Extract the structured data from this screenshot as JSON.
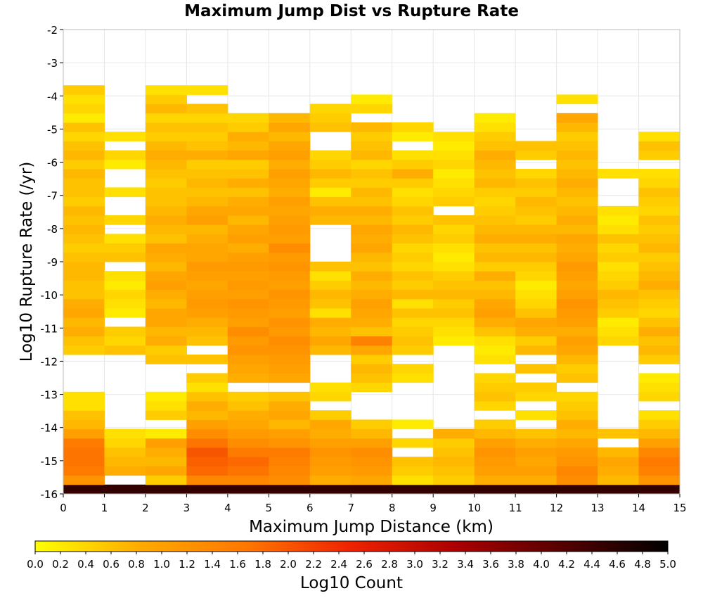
{
  "chart_data": {
    "type": "heatmap",
    "title": "Maximum Jump Dist vs Rupture Rate",
    "xlabel": "Maximum Jump Distance (km)",
    "ylabel": "Log10 Rupture Rate (/yr)",
    "xlim": [
      0,
      15
    ],
    "ylim": [
      -16,
      -2
    ],
    "x_ticks": [
      "0",
      "1",
      "2",
      "3",
      "4",
      "5",
      "6",
      "7",
      "8",
      "9",
      "10",
      "11",
      "12",
      "13",
      "14",
      "15"
    ],
    "y_ticks": [
      "-2",
      "-3",
      "-4",
      "-5",
      "-6",
      "-7",
      "-8",
      "-9",
      "-10",
      "-11",
      "-12",
      "-13",
      "-14",
      "-15",
      "-16"
    ],
    "grid": true,
    "colorbar": {
      "label": "Log10 Count",
      "range": [
        0,
        5
      ],
      "placement": "bottom",
      "ticks": [
        "0.0",
        "0.2",
        "0.4",
        "0.6",
        "0.8",
        "1.0",
        "1.2",
        "1.4",
        "1.6",
        "1.8",
        "2.0",
        "2.2",
        "2.4",
        "2.6",
        "2.8",
        "3.0",
        "3.2",
        "3.4",
        "3.6",
        "3.8",
        "4.0",
        "4.2",
        "4.4",
        "4.6",
        "4.8",
        "5.0"
      ],
      "colors": [
        "#ffff00",
        "#ffaa00",
        "#ff7700",
        "#ee2200",
        "#aa0000",
        "#550000",
        "#000000"
      ]
    },
    "cell_size": {
      "x": 1,
      "y": 0.28
    },
    "columns": [
      {
        "x": 0,
        "y_start": -16.0,
        "values": [
          4.5,
          1.2,
          1.6,
          1.7,
          1.7,
          1.6,
          1.0,
          0.7,
          0.6,
          0.3,
          0.3,
          null,
          null,
          null,
          null,
          0.5,
          0.6,
          0.8,
          0.7,
          0.9,
          0.8,
          0.6,
          0.6,
          0.7,
          0.7,
          0.6,
          0.5,
          0.6,
          0.7,
          0.6,
          0.7,
          0.5,
          0.6,
          0.6,
          0.7,
          0.5,
          0.7,
          0.6,
          0.4,
          0.6,
          0.2,
          0.4,
          0.3,
          0.5
        ]
      },
      {
        "x": 1,
        "y_start": -16.0,
        "values": [
          4.5,
          null,
          0.8,
          0.7,
          0.6,
          0.4,
          0.3,
          null,
          null,
          null,
          null,
          null,
          null,
          null,
          null,
          0.6,
          0.4,
          0.5,
          null,
          0.2,
          0.3,
          0.4,
          0.2,
          0.3,
          null,
          0.6,
          0.5,
          0.3,
          null,
          0.4,
          null,
          null,
          0.3,
          null,
          null,
          0.2,
          0.4,
          null,
          0.3
        ]
      },
      {
        "x": 2,
        "y_start": -16.0,
        "values": [
          4.5,
          0.5,
          0.9,
          0.7,
          0.8,
          1.0,
          0.2,
          null,
          0.5,
          0.3,
          0.2,
          null,
          null,
          null,
          0.6,
          0.5,
          0.8,
          0.7,
          0.9,
          0.9,
          0.7,
          0.8,
          1.0,
          0.9,
          0.7,
          0.8,
          0.9,
          0.6,
          0.7,
          0.8,
          0.7,
          0.6,
          0.6,
          0.5,
          0.6,
          0.7,
          0.8,
          0.7,
          0.5,
          0.6,
          0.4,
          0.7,
          0.5,
          0.3
        ]
      },
      {
        "x": 3,
        "y_start": -16.0,
        "values": [
          4.5,
          1.4,
          1.8,
          1.9,
          2.0,
          1.7,
          1.3,
          1.0,
          0.7,
          0.8,
          0.6,
          0.3,
          0.5,
          null,
          0.6,
          null,
          0.6,
          0.7,
          0.8,
          1.0,
          1.1,
          1.0,
          0.9,
          1.0,
          1.1,
          0.9,
          0.9,
          0.8,
          0.7,
          1.0,
          0.9,
          0.7,
          0.6,
          0.7,
          0.6,
          0.5,
          0.8,
          0.6,
          0.5,
          0.6,
          0.4,
          0.6,
          null,
          0.3
        ]
      },
      {
        "x": 4,
        "y_start": -16.0,
        "values": [
          4.5,
          1.4,
          1.7,
          1.8,
          1.6,
          1.3,
          1.1,
          0.9,
          0.8,
          0.6,
          0.5,
          null,
          0.8,
          0.9,
          1.0,
          1.2,
          1.1,
          1.3,
          1.0,
          1.1,
          1.2,
          1.0,
          1.1,
          1.0,
          1.1,
          1.0,
          0.8,
          1.0,
          0.9,
          0.7,
          0.9,
          0.8,
          0.6,
          0.8,
          0.6,
          0.5,
          0.9,
          0.7,
          0.8,
          0.5,
          0.4
        ]
      },
      {
        "x": 5,
        "y_start": -16.0,
        "values": [
          4.5,
          1.3,
          1.4,
          1.5,
          1.6,
          1.2,
          1.0,
          0.7,
          0.9,
          0.8,
          0.6,
          null,
          0.9,
          1.0,
          1.1,
          1.2,
          1.3,
          1.1,
          1.2,
          1.0,
          1.1,
          1.2,
          1.0,
          1.1,
          1.2,
          1.1,
          1.3,
          1.0,
          1.1,
          1.0,
          0.9,
          1.0,
          0.8,
          0.9,
          1.0,
          0.8,
          1.0,
          0.9,
          0.7,
          0.9,
          0.7
        ]
      },
      {
        "x": 6,
        "y_start": -16.0,
        "values": [
          4.5,
          0.8,
          1.0,
          1.1,
          1.2,
          1.0,
          0.8,
          0.9,
          0.5,
          null,
          0.4,
          0.3,
          null,
          null,
          null,
          0.7,
          0.9,
          0.7,
          0.8,
          0.3,
          0.6,
          0.7,
          0.5,
          0.3,
          0.6,
          null,
          null,
          null,
          null,
          0.7,
          0.8,
          0.6,
          0.2,
          0.5,
          0.7,
          0.5,
          0.4,
          null,
          null,
          0.6,
          0.5,
          0.4
        ]
      },
      {
        "x": 7,
        "y_start": -16.0,
        "values": [
          4.5,
          0.9,
          1.1,
          1.2,
          1.3,
          1.0,
          0.7,
          0.5,
          null,
          null,
          null,
          0.4,
          0.6,
          0.7,
          0.5,
          0.9,
          1.5,
          0.6,
          0.8,
          0.9,
          1.0,
          0.8,
          0.7,
          0.8,
          0.6,
          0.7,
          0.9,
          0.8,
          0.9,
          0.7,
          0.8,
          0.6,
          0.7,
          0.5,
          0.6,
          0.4,
          0.7,
          0.6,
          0.5,
          0.7,
          null,
          0.4,
          0.2
        ]
      },
      {
        "x": 8,
        "y_start": -16.0,
        "values": [
          4.5,
          0.3,
          0.5,
          0.6,
          null,
          0.4,
          null,
          0.2,
          null,
          null,
          null,
          null,
          0.3,
          0.4,
          null,
          0.5,
          0.6,
          0.5,
          0.4,
          0.6,
          0.3,
          0.7,
          0.5,
          0.6,
          0.4,
          0.5,
          0.4,
          0.6,
          0.7,
          0.5,
          0.6,
          0.4,
          0.3,
          0.5,
          0.8,
          0.5,
          0.3,
          null,
          0.2,
          0.4
        ]
      },
      {
        "x": 9,
        "y_start": -16.0,
        "values": [
          4.5,
          0.5,
          0.6,
          0.7,
          0.6,
          0.5,
          0.8,
          null,
          null,
          null,
          null,
          null,
          null,
          null,
          null,
          null,
          0.2,
          0.3,
          0.4,
          0.6,
          0.5,
          0.7,
          0.6,
          0.5,
          0.3,
          0.2,
          0.3,
          0.5,
          0.4,
          0.6,
          null,
          0.5,
          0.4,
          0.3,
          0.2,
          0.4,
          0.3,
          0.2,
          0.3
        ]
      },
      {
        "x": 10,
        "y_start": -16.0,
        "values": [
          4.5,
          0.8,
          1.0,
          1.1,
          1.2,
          1.0,
          0.7,
          0.5,
          null,
          0.4,
          0.6,
          0.5,
          0.4,
          null,
          0.3,
          0.2,
          0.3,
          0.6,
          0.8,
          1.0,
          0.9,
          0.7,
          0.6,
          0.8,
          0.5,
          0.7,
          0.6,
          0.8,
          0.7,
          0.6,
          0.5,
          0.4,
          0.5,
          0.7,
          0.6,
          0.7,
          0.8,
          0.6,
          0.5,
          0.3,
          0.2
        ]
      },
      {
        "x": 11,
        "y_start": -16.0,
        "values": [
          4.5,
          0.8,
          1.0,
          0.9,
          1.0,
          0.8,
          0.6,
          null,
          0.3,
          null,
          0.4,
          0.5,
          null,
          0.6,
          null,
          0.7,
          0.5,
          0.8,
          0.9,
          0.6,
          0.4,
          0.3,
          0.2,
          0.4,
          0.5,
          0.7,
          0.6,
          0.8,
          0.7,
          0.5,
          0.6,
          0.7,
          0.5,
          0.6,
          0.4,
          null,
          0.5,
          0.6
        ]
      },
      {
        "x": 12,
        "y_start": -16.0,
        "values": [
          4.5,
          1.3,
          1.4,
          1.2,
          1.1,
          0.9,
          0.7,
          0.8,
          0.6,
          0.5,
          0.4,
          null,
          0.6,
          0.5,
          0.7,
          0.9,
          1.0,
          0.8,
          1.0,
          1.1,
          1.2,
          1.0,
          0.9,
          1.0,
          1.1,
          0.9,
          0.8,
          0.9,
          0.7,
          0.8,
          0.7,
          0.6,
          0.7,
          0.8,
          0.7,
          0.6,
          0.7,
          0.6,
          0.5,
          0.7,
          0.9,
          null,
          0.3
        ]
      },
      {
        "x": 13,
        "y_start": -16.0,
        "values": [
          4.5,
          0.7,
          0.8,
          0.9,
          0.7,
          null,
          0.6,
          null,
          null,
          null,
          null,
          null,
          null,
          null,
          null,
          null,
          0.4,
          0.3,
          0.2,
          0.5,
          0.6,
          0.7,
          0.5,
          0.4,
          0.3,
          0.5,
          0.4,
          0.6,
          0.3,
          0.2,
          0.3,
          null,
          null,
          null,
          0.3
        ]
      },
      {
        "x": 14,
        "y_start": -16.0,
        "values": [
          4.5,
          1.2,
          1.5,
          1.6,
          1.4,
          1.0,
          0.7,
          0.5,
          0.3,
          null,
          0.4,
          0.3,
          0.2,
          null,
          0.5,
          0.7,
          0.6,
          0.8,
          0.6,
          0.4,
          0.5,
          0.6,
          0.8,
          0.7,
          0.6,
          0.5,
          0.7,
          0.6,
          0.5,
          0.6,
          0.4,
          0.5,
          0.6,
          0.4,
          0.3,
          null,
          0.5,
          0.6,
          0.3
        ]
      }
    ]
  }
}
